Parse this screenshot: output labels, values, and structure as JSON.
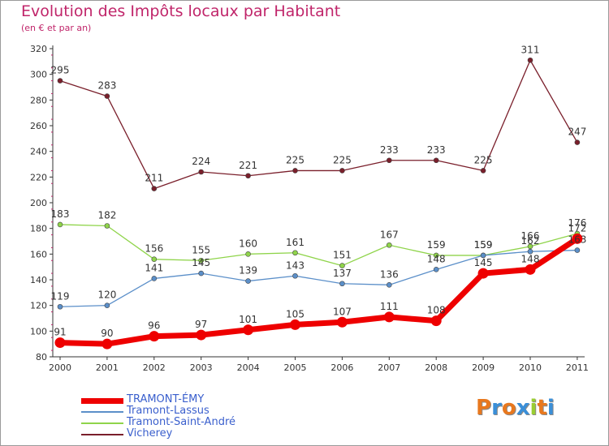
{
  "header": {
    "title": "Evolution des Impôts locaux par Habitant",
    "subtitle": "(en € et par an)"
  },
  "logo": {
    "letters": [
      "P",
      "r",
      "o",
      "x",
      "i",
      "t",
      "i"
    ],
    "colors": [
      "#e8781e",
      "#3a8fd8",
      "#e8781e",
      "#3a8fd8",
      "#9acd32",
      "#e8781e",
      "#3a8fd8"
    ]
  },
  "chart_data": {
    "type": "line",
    "x": [
      "2000",
      "2001",
      "2002",
      "2003",
      "2004",
      "2005",
      "2006",
      "2007",
      "2008",
      "2009",
      "2010",
      "2011"
    ],
    "ylim": [
      80,
      320
    ],
    "yticks": [
      80,
      100,
      120,
      140,
      160,
      180,
      200,
      220,
      240,
      260,
      280,
      300,
      320
    ],
    "grid": false,
    "legend_position": "bottom-left",
    "series": [
      {
        "name": "Vicherey",
        "color": "#7a1f2b",
        "values": [
          295,
          283,
          211,
          224,
          221,
          225,
          225,
          233,
          233,
          225,
          311,
          247
        ]
      },
      {
        "name": "Tramont-Saint-André",
        "color": "#8fd44a",
        "values": [
          183,
          182,
          156,
          155,
          160,
          161,
          151,
          167,
          159,
          159,
          166,
          176
        ]
      },
      {
        "name": "Tramont-Lassus",
        "color": "#5b8fc9",
        "values": [
          119,
          120,
          141,
          145,
          139,
          143,
          137,
          136,
          148,
          159,
          162,
          163
        ]
      },
      {
        "name": "TRAMONT-ÉMY",
        "color": "#ee0000",
        "values": [
          91,
          90,
          96,
          97,
          101,
          105,
          107,
          111,
          108,
          145,
          148,
          172
        ]
      }
    ],
    "legend_order": [
      "TRAMONT-ÉMY",
      "Tramont-Lassus",
      "Tramont-Saint-André",
      "Vicherey"
    ],
    "data_labels": {
      "Vicherey": [
        "295",
        "283",
        "211",
        "224",
        "221",
        "225",
        "225",
        "233",
        "233",
        "225",
        "311",
        "247"
      ],
      "Tramont-Saint-André": [
        "183",
        "182",
        "156",
        "155",
        "160",
        "161",
        "151",
        "167",
        "159",
        "159",
        "166",
        "176"
      ],
      "Tramont-Lassus": [
        "119",
        "120",
        "141",
        "145",
        "139",
        "143",
        "137",
        "136",
        "148",
        "159",
        "162",
        "163"
      ],
      "TRAMONT-ÉMY": [
        "91",
        "90",
        "96",
        "97",
        "101",
        "105",
        "107",
        "111",
        "108",
        "145",
        "148",
        "172"
      ]
    }
  }
}
